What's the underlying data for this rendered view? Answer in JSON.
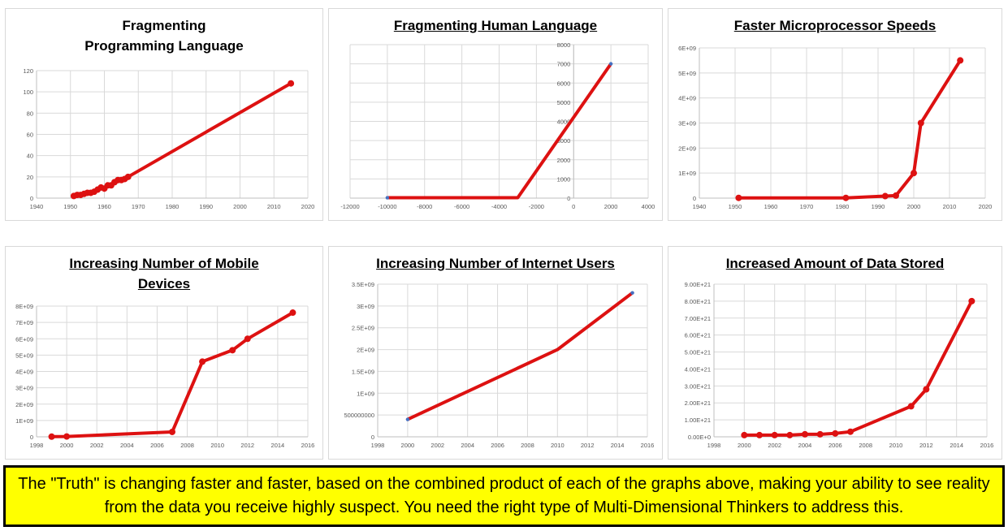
{
  "colors": {
    "line": "#dd1111",
    "marker_alt": "#4472c4",
    "grid": "#d9d9d9",
    "caption_bg": "#ffff00"
  },
  "caption": "The \"Truth\" is changing faster and faster, based on the combined product of each of the graphs above, making your ability to see reality from the data you receive highly suspect. You need the right type of Multi-Dimensional Thinkers to address this.",
  "chart_data": [
    {
      "id": "programming",
      "type": "line",
      "title": "Fragmenting Programming Language",
      "xlim": [
        1940,
        2020
      ],
      "ylim": [
        0,
        120
      ],
      "xticks": [
        1940,
        1950,
        1960,
        1970,
        1980,
        1990,
        2000,
        2010,
        2020
      ],
      "yticks": [
        0,
        20,
        40,
        60,
        80,
        100,
        120
      ],
      "xtick_labels": [
        "1940",
        "1950",
        "1960",
        "1970",
        "1980",
        "1990",
        "2000",
        "2010",
        "2020"
      ],
      "ytick_labels": [
        "0",
        "20",
        "40",
        "60",
        "80",
        "100",
        "120"
      ],
      "x": [
        1951,
        1952,
        1953,
        1954,
        1955,
        1956,
        1957,
        1958,
        1959,
        1960,
        1961,
        1962,
        1963,
        1964,
        1965,
        1966,
        1967,
        2015
      ],
      "y": [
        2,
        3,
        3,
        4,
        5,
        5,
        6,
        8,
        10,
        9,
        12,
        12,
        15,
        17,
        17,
        18,
        20,
        108
      ]
    },
    {
      "id": "human",
      "type": "line",
      "title": "Fragmenting Human Language",
      "xlim": [
        -12000,
        4000
      ],
      "ylim": [
        0,
        8000
      ],
      "xticks": [
        -12000,
        -10000,
        -8000,
        -6000,
        -4000,
        -2000,
        0,
        2000,
        4000
      ],
      "yticks": [
        0,
        1000,
        2000,
        3000,
        4000,
        5000,
        6000,
        7000,
        8000
      ],
      "xtick_labels": [
        "-12000",
        "-10000",
        "-8000",
        "-6000",
        "-4000",
        "-2000",
        "0",
        "2000",
        "4000"
      ],
      "ytick_labels": [
        "0",
        "1000",
        "2000",
        "3000",
        "4000",
        "5000",
        "6000",
        "7000",
        "8000"
      ],
      "x": [
        -10000,
        -3000,
        2000
      ],
      "y": [
        20,
        20,
        7000
      ]
    },
    {
      "id": "cpu",
      "type": "line",
      "title": "Faster Microprocessor Speeds",
      "xlim": [
        1940,
        2020
      ],
      "ylim": [
        0,
        6000000000
      ],
      "xticks": [
        1940,
        1950,
        1960,
        1970,
        1980,
        1990,
        2000,
        2010,
        2020
      ],
      "yticks": [
        0,
        1000000000,
        2000000000,
        3000000000,
        4000000000,
        5000000000,
        6000000000
      ],
      "xtick_labels": [
        "1940",
        "1950",
        "1960",
        "1970",
        "1980",
        "1990",
        "2000",
        "2010",
        "2020"
      ],
      "ytick_labels": [
        "0",
        "1E+09",
        "2E+09",
        "3E+09",
        "4E+09",
        "5E+09",
        "6E+09"
      ],
      "x": [
        1951,
        1981,
        1992,
        1995,
        2000,
        2002,
        2013
      ],
      "y": [
        10000000,
        10000000,
        80000000,
        100000000,
        1000000000,
        3000000000,
        5500000000
      ]
    },
    {
      "id": "mobile",
      "type": "line",
      "title": "Increasing Number of Mobile Devices",
      "xlim": [
        1998,
        2016
      ],
      "ylim": [
        0,
        8000000000
      ],
      "xticks": [
        1998,
        2000,
        2002,
        2004,
        2006,
        2008,
        2010,
        2012,
        2014,
        2016
      ],
      "yticks": [
        0,
        1000000000,
        2000000000,
        3000000000,
        4000000000,
        5000000000,
        6000000000,
        7000000000,
        8000000000
      ],
      "xtick_labels": [
        "1998",
        "2000",
        "2002",
        "2004",
        "2006",
        "2008",
        "2010",
        "2012",
        "2014",
        "2016"
      ],
      "ytick_labels": [
        "0",
        "1E+09",
        "2E+09",
        "3E+09",
        "4E+09",
        "5E+09",
        "6E+09",
        "7E+09",
        "8E+09"
      ],
      "x": [
        1999,
        2000,
        2007,
        2009,
        2011,
        2012,
        2015
      ],
      "y": [
        10000000,
        20000000,
        300000000,
        4600000000,
        5300000000,
        6000000000,
        7600000000
      ]
    },
    {
      "id": "internet",
      "type": "line",
      "title": "Increasing Number of Internet Users",
      "xlim": [
        1998,
        2016
      ],
      "ylim": [
        0,
        3500000000
      ],
      "xticks": [
        1998,
        2000,
        2002,
        2004,
        2006,
        2008,
        2010,
        2012,
        2014,
        2016
      ],
      "yticks": [
        0,
        500000000,
        1000000000,
        1500000000,
        2000000000,
        2500000000,
        3000000000,
        3500000000
      ],
      "xtick_labels": [
        "1998",
        "2000",
        "2002",
        "2004",
        "2006",
        "2008",
        "2010",
        "2012",
        "2014",
        "2016"
      ],
      "ytick_labels": [
        "0",
        "500000000",
        "1E+09",
        "1.5E+09",
        "2E+09",
        "2.5E+09",
        "3E+09",
        "3.5E+09"
      ],
      "x": [
        2000,
        2010,
        2015
      ],
      "y": [
        400000000,
        2000000000,
        3300000000
      ]
    },
    {
      "id": "data",
      "type": "line",
      "title": "Increased Amount of Data Stored",
      "xlim": [
        1998,
        2016
      ],
      "ylim": [
        0,
        9e+21
      ],
      "xticks": [
        1998,
        2000,
        2002,
        2004,
        2006,
        2008,
        2010,
        2012,
        2014,
        2016
      ],
      "yticks": [
        0,
        1e+21,
        2e+21,
        3e+21,
        4e+21,
        5e+21,
        6e+21,
        7e+21,
        8e+21,
        9e+21
      ],
      "xtick_labels": [
        "1998",
        "2000",
        "2002",
        "2004",
        "2006",
        "2008",
        "2010",
        "2012",
        "2014",
        "2016"
      ],
      "ytick_labels": [
        "0.00E+0",
        "1.00E+21",
        "2.00E+21",
        "3.00E+21",
        "4.00E+21",
        "5.00E+21",
        "6.00E+21",
        "7.00E+21",
        "8.00E+21",
        "9.00E+21"
      ],
      "x": [
        2000,
        2001,
        2002,
        2003,
        2004,
        2005,
        2006,
        2007,
        2011,
        2012,
        2015
      ],
      "y": [
        1e+20,
        1e+20,
        1e+20,
        1e+20,
        1.5e+20,
        1.5e+20,
        2e+20,
        3e+20,
        1.8e+21,
        2.8e+21,
        8e+21
      ]
    }
  ]
}
